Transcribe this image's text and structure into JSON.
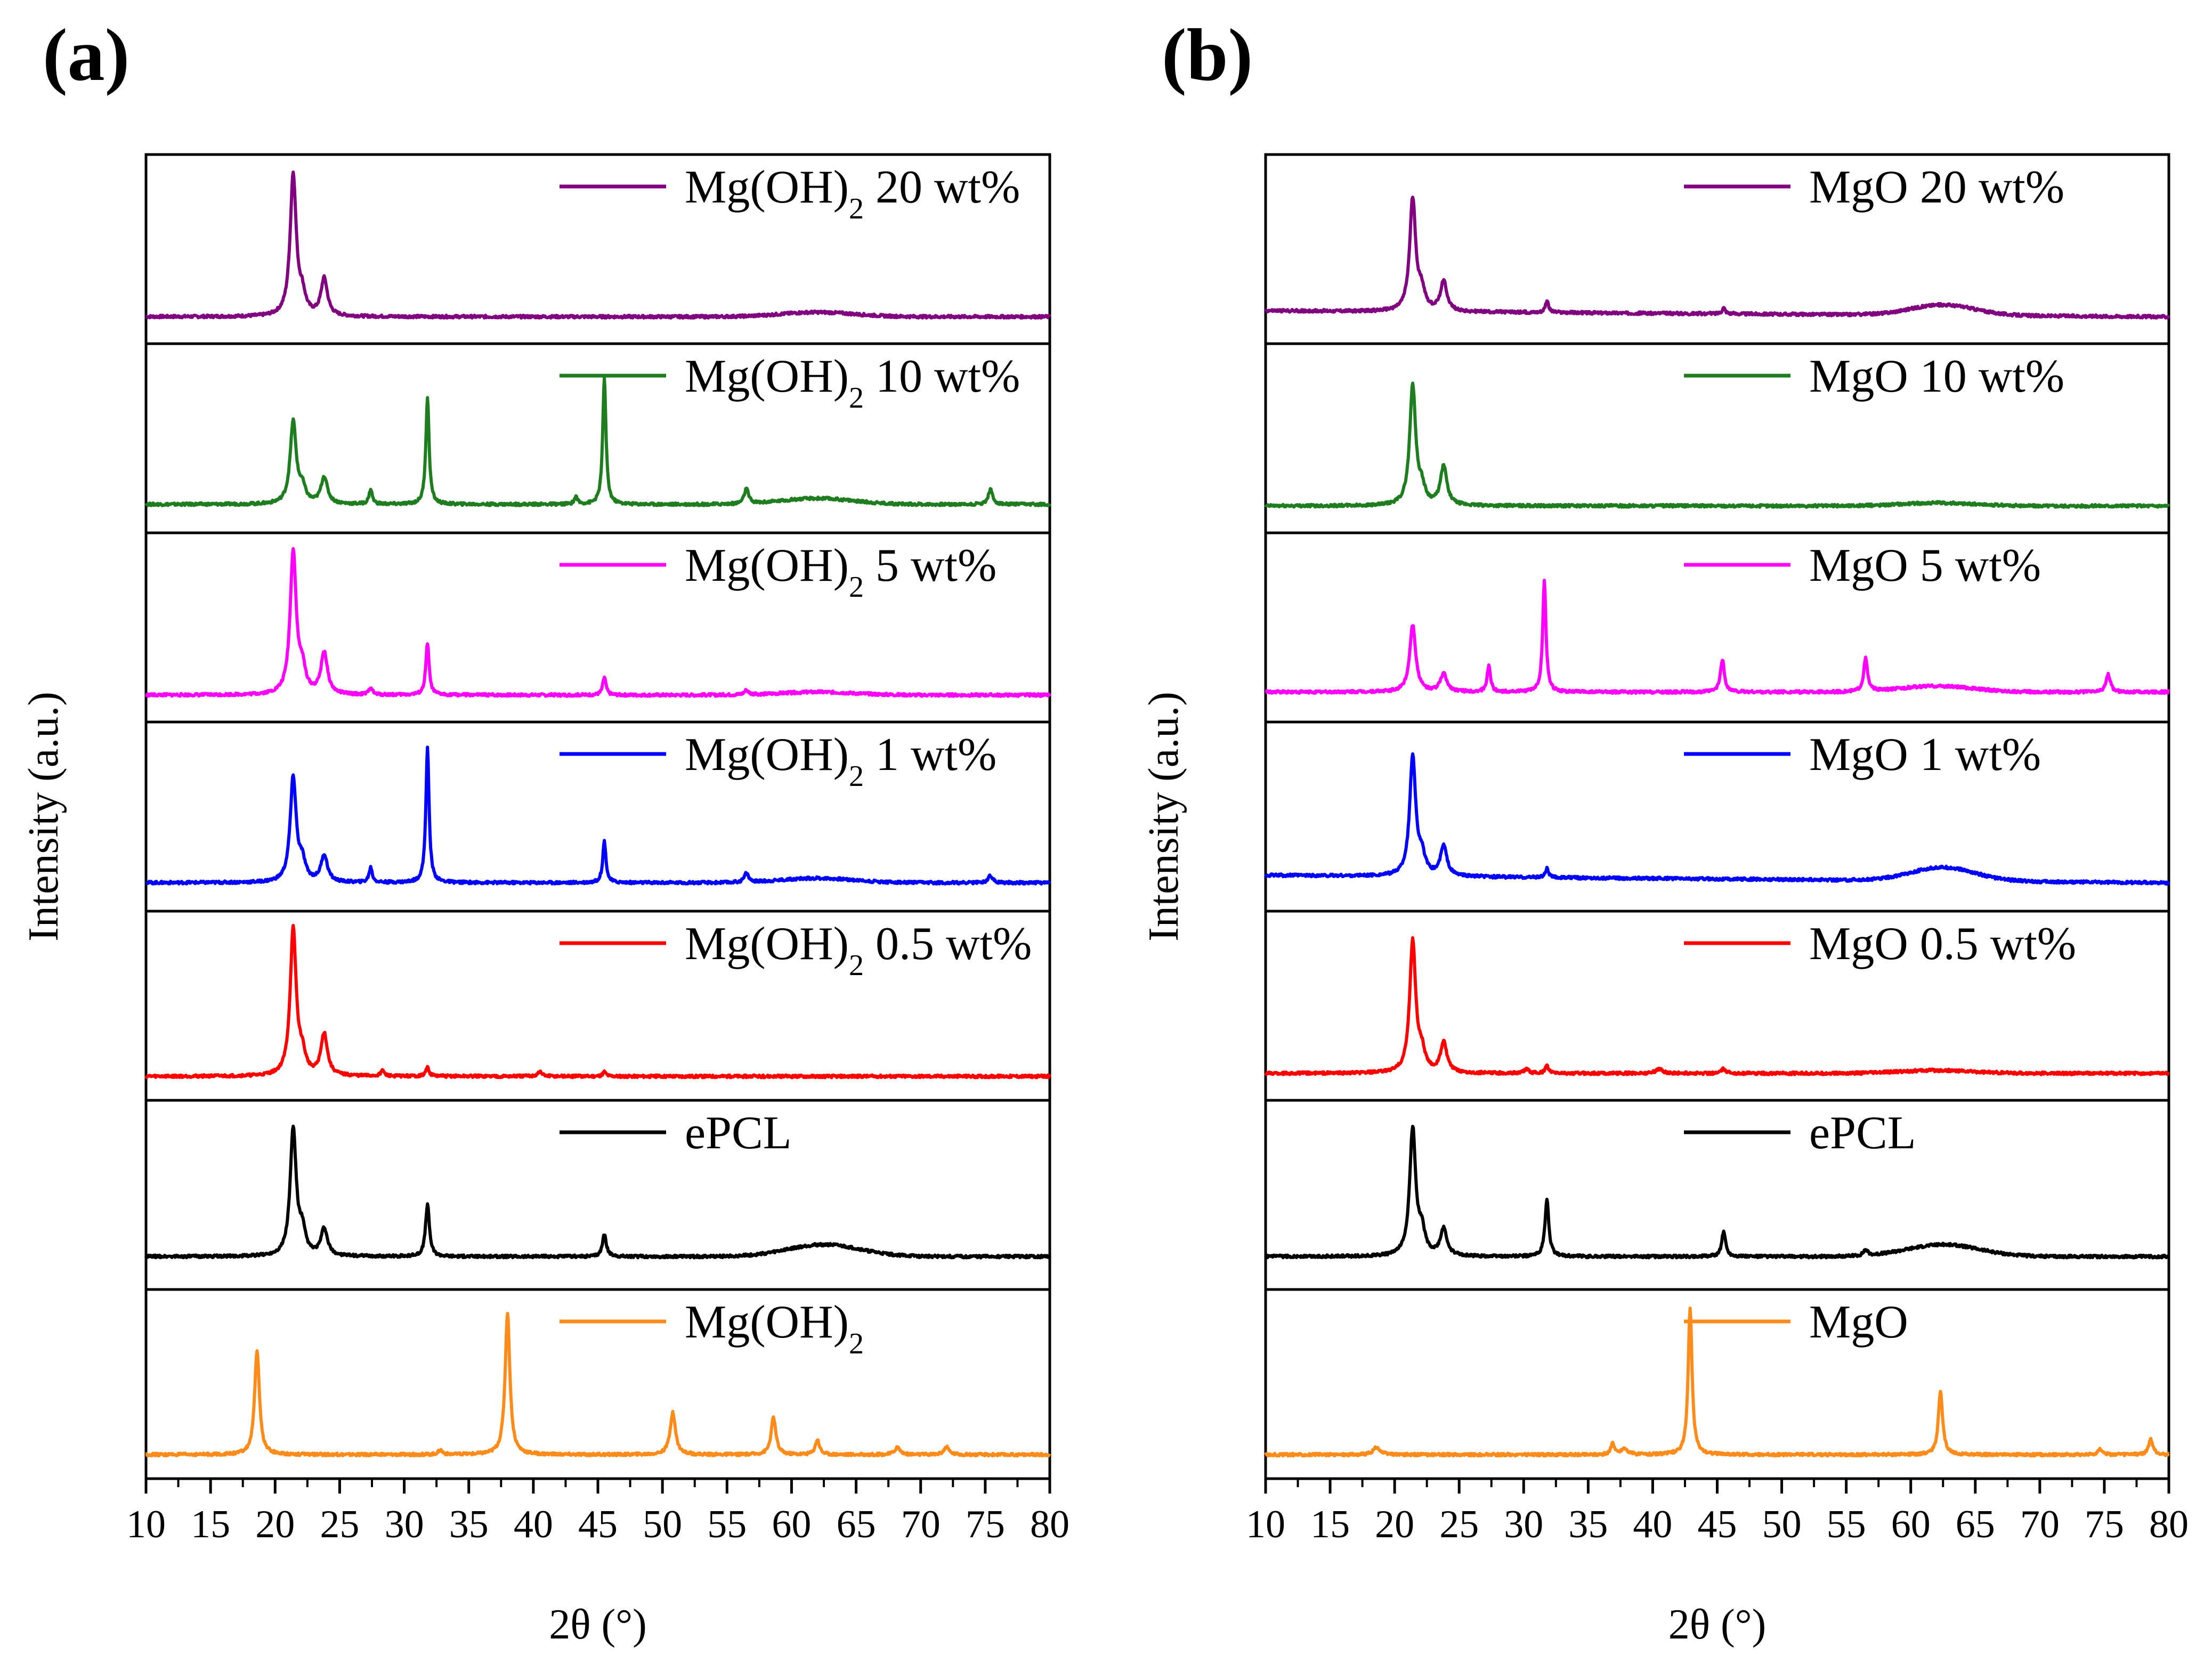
{
  "chart_data": [
    {
      "type": "line",
      "panel_label": "(a)",
      "xlabel": "2θ (°)",
      "ylabel": "Intensity (a.u.)",
      "xlim": [
        10,
        80
      ],
      "xticks": [
        10,
        15,
        20,
        25,
        30,
        35,
        40,
        45,
        50,
        55,
        60,
        65,
        70,
        75,
        80
      ],
      "legend": "top-right of each stacked subpanel",
      "series": [
        {
          "name": "Mg(OH)2 20 wt%",
          "label_main": "Mg(OH)",
          "label_sub": "2",
          "label_tail": " 20 wt%",
          "color": "#800080",
          "baseline": 0.02,
          "peaks": [
            [
              21.4,
              0.95,
              0.28
            ],
            [
              22.1,
              0.12,
              0.3
            ],
            [
              23.8,
              0.25,
              0.3
            ]
          ],
          "hump": [
            [
              62,
              0.03,
              4
            ]
          ]
        },
        {
          "name": "Mg(OH)2 10 wt%",
          "label_main": "Mg(OH)",
          "label_sub": "2",
          "label_tail": " 10 wt%",
          "color": "#1e7d1e",
          "baseline": 0.03,
          "peaks": [
            [
              21.4,
              0.55,
              0.28
            ],
            [
              22.1,
              0.1,
              0.3
            ],
            [
              23.8,
              0.18,
              0.3
            ],
            [
              27.4,
              0.1,
              0.15
            ],
            [
              31.8,
              0.72,
              0.15
            ],
            [
              43.3,
              0.05,
              0.15
            ],
            [
              45.5,
              0.85,
              0.15
            ],
            [
              56.5,
              0.1,
              0.2
            ],
            [
              75.4,
              0.1,
              0.2
            ]
          ],
          "hump": [
            [
              62,
              0.04,
              4
            ]
          ]
        },
        {
          "name": "Mg(OH)2 5 wt%",
          "label_main": "Mg(OH)",
          "label_sub": "2",
          "label_tail": " 5 wt%",
          "color": "#ff00ff",
          "baseline": 0.02,
          "peaks": [
            [
              21.4,
              0.96,
              0.28
            ],
            [
              22.1,
              0.15,
              0.3
            ],
            [
              23.8,
              0.28,
              0.3
            ],
            [
              27.4,
              0.05,
              0.15
            ],
            [
              31.8,
              0.35,
              0.15
            ],
            [
              45.5,
              0.12,
              0.15
            ],
            [
              56.5,
              0.03,
              0.2
            ]
          ],
          "hump": [
            [
              62,
              0.02,
              4
            ]
          ]
        },
        {
          "name": "Mg(OH)2 1 wt%",
          "label_main": "Mg(OH)",
          "label_sub": "2",
          "label_tail": " 1 wt%",
          "color": "#0000ff",
          "baseline": 0.03,
          "peaks": [
            [
              21.4,
              0.7,
              0.28
            ],
            [
              22.1,
              0.12,
              0.3
            ],
            [
              23.8,
              0.18,
              0.3
            ],
            [
              27.4,
              0.1,
              0.15
            ],
            [
              31.8,
              0.9,
              0.15
            ],
            [
              45.5,
              0.28,
              0.15
            ],
            [
              56.5,
              0.06,
              0.2
            ],
            [
              75.4,
              0.05,
              0.2
            ]
          ],
          "hump": [
            [
              62,
              0.03,
              4
            ]
          ]
        },
        {
          "name": "Mg(OH)2 0.5 wt%",
          "label_main": "Mg(OH)",
          "label_sub": "2",
          "label_tail": " 0.5 wt%",
          "color": "#ff0000",
          "baseline": 0.0,
          "peaks": [
            [
              21.4,
              0.98,
              0.28
            ],
            [
              22.1,
              0.12,
              0.3
            ],
            [
              23.8,
              0.28,
              0.3
            ],
            [
              28.3,
              0.04,
              0.15
            ],
            [
              31.8,
              0.06,
              0.15
            ],
            [
              40.5,
              0.03,
              0.2
            ],
            [
              45.5,
              0.03,
              0.15
            ]
          ],
          "hump": []
        },
        {
          "name": "ePCL",
          "label_main": "ePCL",
          "label_sub": "",
          "label_tail": "",
          "color": "#000000",
          "baseline": 0.06,
          "peaks": [
            [
              21.4,
              0.85,
              0.28
            ],
            [
              22.1,
              0.15,
              0.3
            ],
            [
              23.8,
              0.18,
              0.3
            ],
            [
              31.8,
              0.35,
              0.18
            ],
            [
              45.5,
              0.15,
              0.18
            ]
          ],
          "hump": [
            [
              62.5,
              0.08,
              4
            ]
          ]
        },
        {
          "name": "Mg(OH)2",
          "label_main": "Mg(OH)",
          "label_sub": "2",
          "label_tail": "",
          "color": "#ff8c1a",
          "baseline": 0.0,
          "peaks": [
            [
              18.6,
              0.7,
              0.22
            ],
            [
              32.8,
              0.03,
              0.2
            ],
            [
              38.0,
              0.95,
              0.22
            ],
            [
              50.8,
              0.28,
              0.25
            ],
            [
              58.6,
              0.25,
              0.22
            ],
            [
              62.0,
              0.1,
              0.2
            ],
            [
              68.2,
              0.05,
              0.25
            ],
            [
              72.0,
              0.05,
              0.25
            ]
          ],
          "hump": []
        }
      ]
    },
    {
      "type": "line",
      "panel_label": "(b)",
      "xlabel": "2θ (°)",
      "ylabel": "Intensity (a.u.)",
      "xlim": [
        10,
        80
      ],
      "xticks": [
        10,
        15,
        20,
        25,
        30,
        35,
        40,
        45,
        50,
        55,
        60,
        65,
        70,
        75,
        80
      ],
      "legend": "top-right of each stacked subpanel",
      "series": [
        {
          "name": "MgO 20 wt%",
          "label_main": "MgO 20 wt%",
          "label_sub": "",
          "label_tail": "",
          "color": "#800080",
          "baseline": 0.06,
          "peaks": [
            [
              21.4,
              0.75,
              0.28
            ],
            [
              22.1,
              0.12,
              0.3
            ],
            [
              23.8,
              0.2,
              0.3
            ],
            [
              31.8,
              0.08,
              0.15
            ],
            [
              45.5,
              0.04,
              0.15
            ]
          ],
          "hump": [
            [
              62.5,
              0.07,
              3.5
            ]
          ],
          "slope": -0.04
        },
        {
          "name": "MgO 10 wt%",
          "label_main": "MgO 10 wt%",
          "label_sub": "",
          "label_tail": "",
          "color": "#1e7d1e",
          "baseline": 0.02,
          "peaks": [
            [
              21.4,
              0.8,
              0.28
            ],
            [
              22.1,
              0.1,
              0.3
            ],
            [
              23.8,
              0.26,
              0.3
            ]
          ],
          "hump": [
            [
              62,
              0.02,
              4
            ]
          ]
        },
        {
          "name": "MgO 5 wt%",
          "label_main": "MgO 5 wt%",
          "label_sub": "",
          "label_tail": "",
          "color": "#ff00ff",
          "baseline": 0.04,
          "peaks": [
            [
              21.4,
              0.45,
              0.28
            ],
            [
              23.8,
              0.12,
              0.3
            ],
            [
              27.3,
              0.18,
              0.15
            ],
            [
              31.6,
              0.75,
              0.15
            ],
            [
              45.4,
              0.22,
              0.18
            ],
            [
              56.5,
              0.22,
              0.18
            ],
            [
              75.3,
              0.12,
              0.2
            ]
          ],
          "hump": [
            [
              62,
              0.04,
              4
            ]
          ]
        },
        {
          "name": "MgO 1 wt%",
          "label_main": "MgO 1 wt%",
          "label_sub": "",
          "label_tail": "",
          "color": "#0000ff",
          "baseline": 0.08,
          "peaks": [
            [
              21.4,
              0.8,
              0.28
            ],
            [
              22.1,
              0.12,
              0.3
            ],
            [
              23.8,
              0.2,
              0.3
            ],
            [
              31.8,
              0.06,
              0.15
            ]
          ],
          "hump": [
            [
              62.5,
              0.09,
              3.5
            ]
          ],
          "slope": -0.05
        },
        {
          "name": "MgO 0.5 wt%",
          "label_main": "MgO 0.5 wt%",
          "label_sub": "",
          "label_tail": "",
          "color": "#ff0000",
          "baseline": 0.02,
          "peaks": [
            [
              21.4,
              0.88,
              0.28
            ],
            [
              22.1,
              0.12,
              0.3
            ],
            [
              23.8,
              0.2,
              0.3
            ],
            [
              30.2,
              0.03,
              0.2
            ],
            [
              31.8,
              0.05,
              0.15
            ],
            [
              40.5,
              0.03,
              0.3
            ],
            [
              45.5,
              0.03,
              0.2
            ]
          ],
          "hump": [
            [
              62,
              0.02,
              4
            ]
          ]
        },
        {
          "name": "ePCL",
          "label_main": "ePCL",
          "label_sub": "",
          "label_tail": "",
          "color": "#000000",
          "baseline": 0.06,
          "peaks": [
            [
              21.4,
              0.85,
              0.28
            ],
            [
              22.1,
              0.15,
              0.3
            ],
            [
              23.8,
              0.18,
              0.3
            ],
            [
              31.8,
              0.38,
              0.18
            ],
            [
              45.5,
              0.17,
              0.18
            ],
            [
              56.5,
              0.04,
              0.2
            ]
          ],
          "hump": [
            [
              62.5,
              0.08,
              4
            ]
          ]
        },
        {
          "name": "MgO",
          "label_main": "MgO",
          "label_sub": "",
          "label_tail": "",
          "color": "#ff8c1a",
          "baseline": 0.0,
          "peaks": [
            [
              18.6,
              0.05,
              0.3
            ],
            [
              36.9,
              0.08,
              0.15
            ],
            [
              37.8,
              0.04,
              0.3
            ],
            [
              42.9,
              0.98,
              0.18
            ],
            [
              62.3,
              0.42,
              0.2
            ],
            [
              74.7,
              0.04,
              0.2
            ],
            [
              78.6,
              0.1,
              0.2
            ]
          ],
          "hump": []
        }
      ]
    }
  ]
}
